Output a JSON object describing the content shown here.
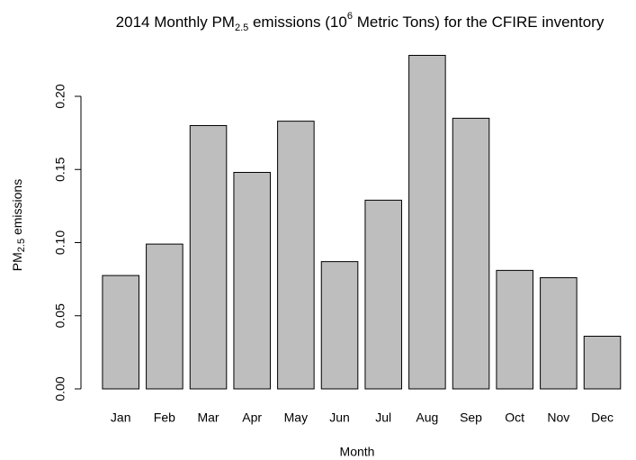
{
  "chart_data": {
    "type": "bar",
    "title": [
      "2014 Monthly PM",
      "2.5",
      " emissions (10",
      "6",
      " Metric Tons) for the CFIRE inventory"
    ],
    "x_label": "Month",
    "y_label": [
      "PM",
      "2.5",
      " emissions"
    ],
    "categories": [
      "Jan",
      "Feb",
      "Mar",
      "Apr",
      "May",
      "Jun",
      "Jul",
      "Aug",
      "Sep",
      "Oct",
      "Nov",
      "Dec"
    ],
    "values": [
      0.0775,
      0.099,
      0.18,
      0.148,
      0.183,
      0.087,
      0.129,
      0.228,
      0.185,
      0.081,
      0.076,
      0.036
    ],
    "color": "#bebebe",
    "ylim": [
      0,
      0.236
    ],
    "yticks": [
      {
        "value": 0,
        "label": "0.00"
      },
      0.05,
      {
        "value": 0.1,
        "label": "0.10"
      },
      0.15,
      {
        "value": 0.2,
        "label": "0.20"
      }
    ],
    "grid": false
  }
}
